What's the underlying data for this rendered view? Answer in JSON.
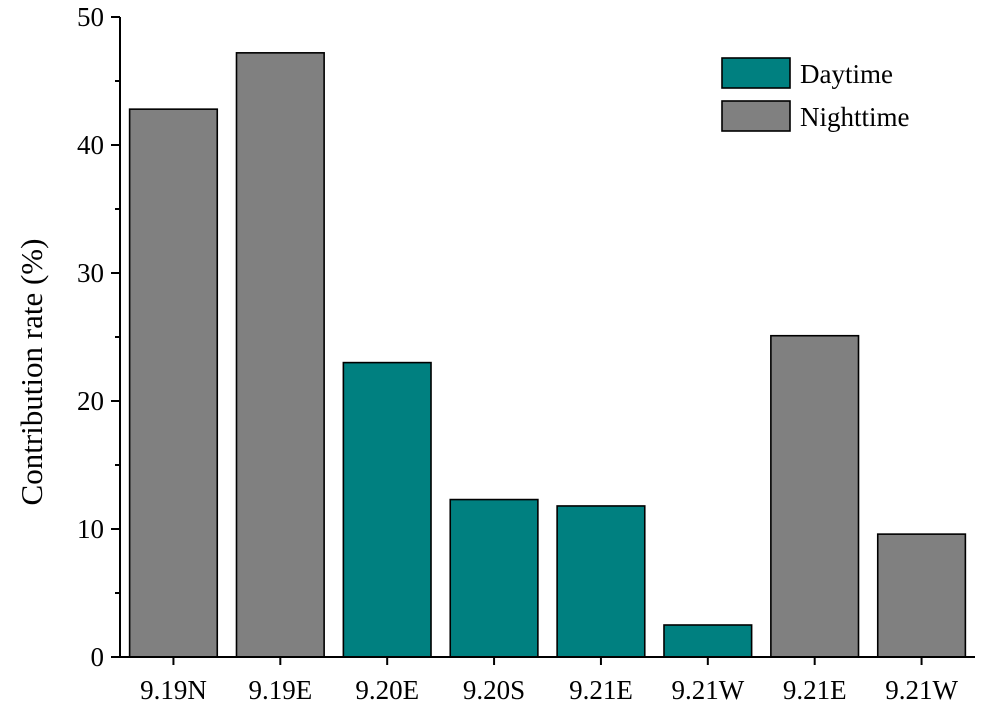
{
  "chart_data": {
    "type": "bar",
    "categories": [
      "9.19N",
      "9.19E",
      "9.20E",
      "9.20S",
      "9.21E",
      "9.21W",
      "9.21E",
      "9.21W"
    ],
    "values": [
      42.8,
      47.2,
      23.0,
      12.3,
      11.8,
      2.5,
      25.1,
      9.6
    ],
    "period": [
      "Nighttime",
      "Nighttime",
      "Daytime",
      "Daytime",
      "Daytime",
      "Daytime",
      "Nighttime",
      "Nighttime"
    ],
    "series": [
      {
        "name": "Daytime",
        "color": "#008080"
      },
      {
        "name": "Nighttime",
        "color": "#808080"
      }
    ],
    "title": "",
    "xlabel": "",
    "ylabel": "Contribution rate (%)",
    "ylim": [
      0,
      50
    ],
    "yticks": [
      0,
      10,
      20,
      30,
      40,
      50
    ],
    "grid": false,
    "legend_position": "top-right"
  }
}
